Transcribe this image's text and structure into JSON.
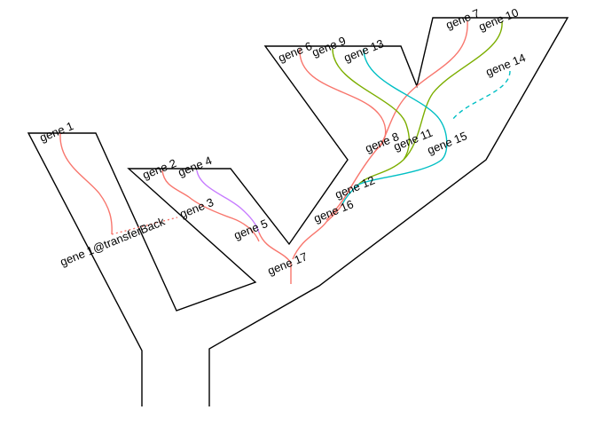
{
  "colors": {
    "outline": "#000000",
    "red": "#F8766D",
    "olive": "#7CAE00",
    "teal": "#00BFC4",
    "purple": "#C77CFF"
  },
  "labels": {
    "gene1": "gene 1",
    "gene1_transfer": "gene 1@transferBack",
    "gene2": "gene 2",
    "gene3": "gene 3",
    "gene4": "gene 4",
    "gene5": "gene 5",
    "gene6": "gene 6",
    "gene7": "gene 7",
    "gene8": "gene 8",
    "gene9": "gene 9",
    "gene10": "gene 10",
    "gene11": "gene 11",
    "gene12": "gene 12",
    "gene13": "gene 13",
    "gene14": "gene 14",
    "gene15": "gene 15",
    "gene16": "gene 16",
    "gene17": "gene 17"
  }
}
